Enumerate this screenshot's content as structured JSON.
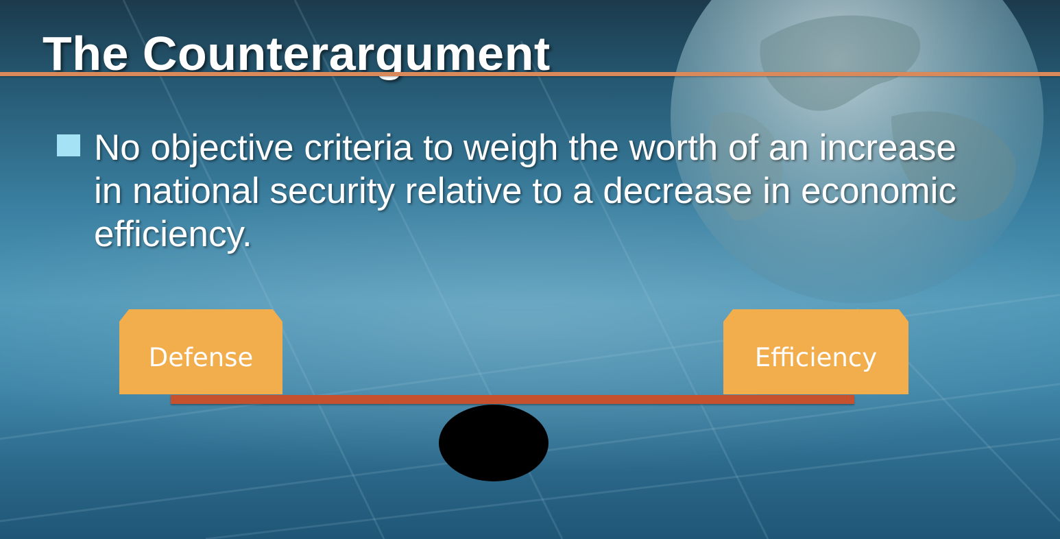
{
  "slide": {
    "title": "The Counterargument",
    "bullets": [
      "No objective criteria to weigh the worth of an increase in national security relative to a decrease in economic efficiency."
    ]
  },
  "diagram": {
    "left_label": "Defense",
    "right_label": "Efficiency"
  },
  "colors": {
    "title_rule": "#d9895a",
    "bullet_marker": "#a6e2f5",
    "box_fill": "#f2ad4c",
    "beam": "#c6512f",
    "fulcrum": "#000000"
  },
  "background": {
    "globe_icon": "globe-icon"
  }
}
